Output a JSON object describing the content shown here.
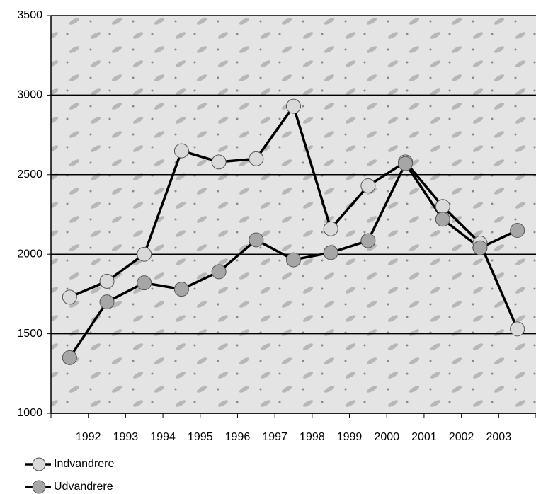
{
  "chart_data": {
    "type": "line",
    "categories": [
      null,
      "1992",
      "1993",
      "1994",
      "1995",
      "1996",
      "1997",
      "1998",
      "1999",
      "2000",
      "2001",
      "2002",
      "2003"
    ],
    "series": [
      {
        "name": "Indvandrere",
        "color": "#d9d9d9",
        "values": [
          1730,
          1830,
          2000,
          2650,
          2580,
          2600,
          2930,
          2160,
          2430,
          2580,
          2300,
          2070,
          1530
        ]
      },
      {
        "name": "Udvandrere",
        "color": "#a6a6a6",
        "values": [
          1350,
          1700,
          1820,
          1780,
          1890,
          2090,
          1965,
          2010,
          2085,
          2570,
          2220,
          2040,
          2150
        ]
      }
    ],
    "ylim": [
      1000,
      3500
    ],
    "yticks": [
      1000,
      1500,
      2000,
      2500,
      3000,
      3500
    ],
    "grid": true,
    "legend": "bottom-left"
  }
}
